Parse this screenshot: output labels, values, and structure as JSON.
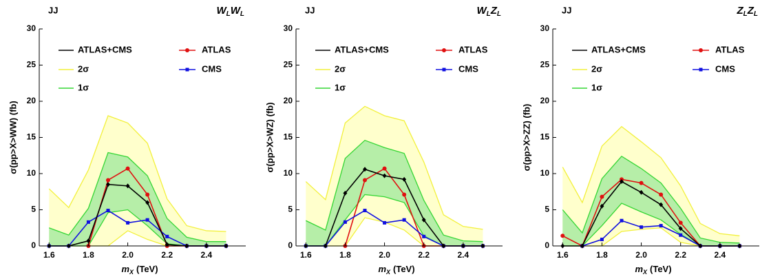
{
  "chart_data": [
    {
      "type": "line",
      "title": "JJ",
      "channel": [
        {
          "text": "W",
          "sub": "L"
        },
        {
          "text": "W",
          "sub": "L"
        }
      ],
      "y_label": "σ(pp>X>WW) (fb)",
      "x_label": {
        "base": "m",
        "sub": "X",
        "unit": "(TeV)"
      },
      "x": [
        1.6,
        1.7,
        1.8,
        1.9,
        2.0,
        2.1,
        2.2,
        2.3,
        2.4,
        2.5
      ],
      "xlim": [
        1.55,
        2.6
      ],
      "ylim": [
        0,
        30
      ],
      "xticks": [
        1.6,
        1.8,
        {
          "value": 2,
          "label": "2.0"
        },
        2.2,
        2.4
      ],
      "yticks": [
        0,
        5,
        10,
        15,
        20,
        25,
        30
      ],
      "bands": [
        {
          "name": "2σ",
          "fill": "#ffffcc",
          "edge": "#f2f03a",
          "upper": [
            7.9,
            5.3,
            10.5,
            18,
            17,
            14.2,
            6.5,
            2.8,
            2.1,
            2.0
          ],
          "lower": [
            0,
            0,
            0,
            0,
            2.1,
            0.9,
            0,
            0,
            0,
            0
          ]
        },
        {
          "name": "1σ",
          "fill": "#b6eea8",
          "edge": "#33d633",
          "upper": [
            2.5,
            1.5,
            5.2,
            12.9,
            12.3,
            9.7,
            3.8,
            1.2,
            0.6,
            0.6
          ],
          "lower": [
            0,
            0,
            0,
            4.6,
            5.0,
            2.8,
            0.3,
            0,
            0,
            0
          ]
        }
      ],
      "series": [
        {
          "name": "ATLAS+CMS",
          "color": "#000000",
          "marker": "diamond",
          "values": [
            0,
            0,
            0.7,
            8.5,
            8.3,
            6.0,
            0.2,
            0,
            0,
            0
          ]
        },
        {
          "name": "ATLAS",
          "color": "#e01010",
          "marker": "circle",
          "values": [
            null,
            null,
            0,
            9.1,
            10.7,
            7.1,
            0,
            0,
            0,
            0
          ]
        },
        {
          "name": "CMS",
          "color": "#1010e0",
          "marker": "square",
          "values": [
            0,
            0,
            3.3,
            4.9,
            3.2,
            3.6,
            1.3,
            0,
            0,
            0
          ]
        }
      ]
    },
    {
      "type": "line",
      "title": "JJ",
      "channel": [
        {
          "text": "W",
          "sub": "L"
        },
        {
          "text": "Z",
          "sub": "L"
        }
      ],
      "y_label": "σ(pp>X>WZ) (fb)",
      "x_label": {
        "base": "m",
        "sub": "X",
        "unit": "(TeV)"
      },
      "x": [
        1.6,
        1.7,
        1.8,
        1.9,
        2.0,
        2.1,
        2.2,
        2.3,
        2.4,
        2.5
      ],
      "xlim": [
        1.55,
        2.6
      ],
      "ylim": [
        0,
        30
      ],
      "xticks": [
        1.6,
        1.8,
        {
          "value": 2,
          "label": "2.0"
        },
        2.2,
        2.4
      ],
      "yticks": [
        0,
        5,
        10,
        15,
        20,
        25,
        30
      ],
      "bands": [
        {
          "name": "2σ",
          "fill": "#ffffcc",
          "edge": "#f2f03a",
          "upper": [
            8.9,
            6.4,
            17,
            19.3,
            18,
            17.3,
            11.6,
            4.3,
            2.7,
            2.3
          ],
          "lower": [
            0,
            0,
            0,
            3.9,
            3.3,
            2.2,
            0,
            0,
            0,
            0
          ]
        },
        {
          "name": "1σ",
          "fill": "#b6eea8",
          "edge": "#33d633",
          "upper": [
            3.5,
            2.2,
            12.1,
            14.6,
            13.6,
            12.8,
            6.3,
            1.5,
            0.7,
            0.6
          ],
          "lower": [
            0,
            0,
            3.6,
            7.1,
            6.8,
            6.0,
            1.4,
            0,
            0,
            0
          ]
        }
      ],
      "series": [
        {
          "name": "ATLAS+CMS",
          "color": "#000000",
          "marker": "diamond",
          "values": [
            0,
            0,
            7.3,
            10.6,
            9.7,
            9.2,
            3.6,
            0,
            0,
            0
          ]
        },
        {
          "name": "ATLAS",
          "color": "#e01010",
          "marker": "circle",
          "values": [
            null,
            null,
            0,
            9.1,
            10.7,
            7.1,
            0,
            0,
            0,
            0
          ]
        },
        {
          "name": "CMS",
          "color": "#1010e0",
          "marker": "square",
          "values": [
            0,
            0,
            3.3,
            4.9,
            3.2,
            3.6,
            1.3,
            0,
            0,
            0
          ]
        }
      ]
    },
    {
      "type": "line",
      "title": "JJ",
      "channel": [
        {
          "text": "Z",
          "sub": "L"
        },
        {
          "text": "Z",
          "sub": "L"
        }
      ],
      "y_label": "σ(pp>X>ZZ) (fb)",
      "x_label": {
        "base": "m",
        "sub": "X",
        "unit": "(TeV)"
      },
      "x": [
        1.6,
        1.7,
        1.8,
        1.9,
        2.0,
        2.1,
        2.2,
        2.3,
        2.4,
        2.5
      ],
      "xlim": [
        1.55,
        2.6
      ],
      "ylim": [
        0,
        30
      ],
      "xticks": [
        1.6,
        1.8,
        {
          "value": 2,
          "label": "2.0"
        },
        2.2,
        2.4
      ],
      "yticks": [
        0,
        5,
        10,
        15,
        20,
        25,
        30
      ],
      "bands": [
        {
          "name": "2σ",
          "fill": "#ffffcc",
          "edge": "#f2f03a",
          "upper": [
            10.9,
            6.0,
            13.8,
            16.5,
            14.4,
            12.2,
            8.3,
            3.1,
            1.7,
            1.4
          ],
          "lower": [
            0,
            0,
            0,
            2.0,
            2.3,
            2.5,
            0.5,
            0,
            0,
            0
          ]
        },
        {
          "name": "1σ",
          "fill": "#b6eea8",
          "edge": "#33d633",
          "upper": [
            5.0,
            1.8,
            9.3,
            12.4,
            10.7,
            8.7,
            5.2,
            1.1,
            0.5,
            0.4
          ],
          "lower": [
            0,
            0,
            2.8,
            5.9,
            4.7,
            3.6,
            1.6,
            0,
            0,
            0
          ]
        }
      ],
      "series": [
        {
          "name": "ATLAS+CMS",
          "color": "#000000",
          "marker": "diamond",
          "values": [
            0,
            0,
            5.5,
            8.9,
            7.4,
            5.7,
            2.4,
            0,
            0,
            0
          ]
        },
        {
          "name": "ATLAS",
          "color": "#e01010",
          "marker": "circle",
          "values": [
            1.4,
            0,
            6.8,
            9.2,
            8.7,
            7.1,
            3.2,
            0,
            0,
            0
          ]
        },
        {
          "name": "CMS",
          "color": "#1010e0",
          "marker": "square",
          "values": [
            null,
            0,
            0.9,
            3.5,
            2.6,
            2.8,
            1.5,
            0,
            0,
            0
          ]
        }
      ]
    }
  ]
}
